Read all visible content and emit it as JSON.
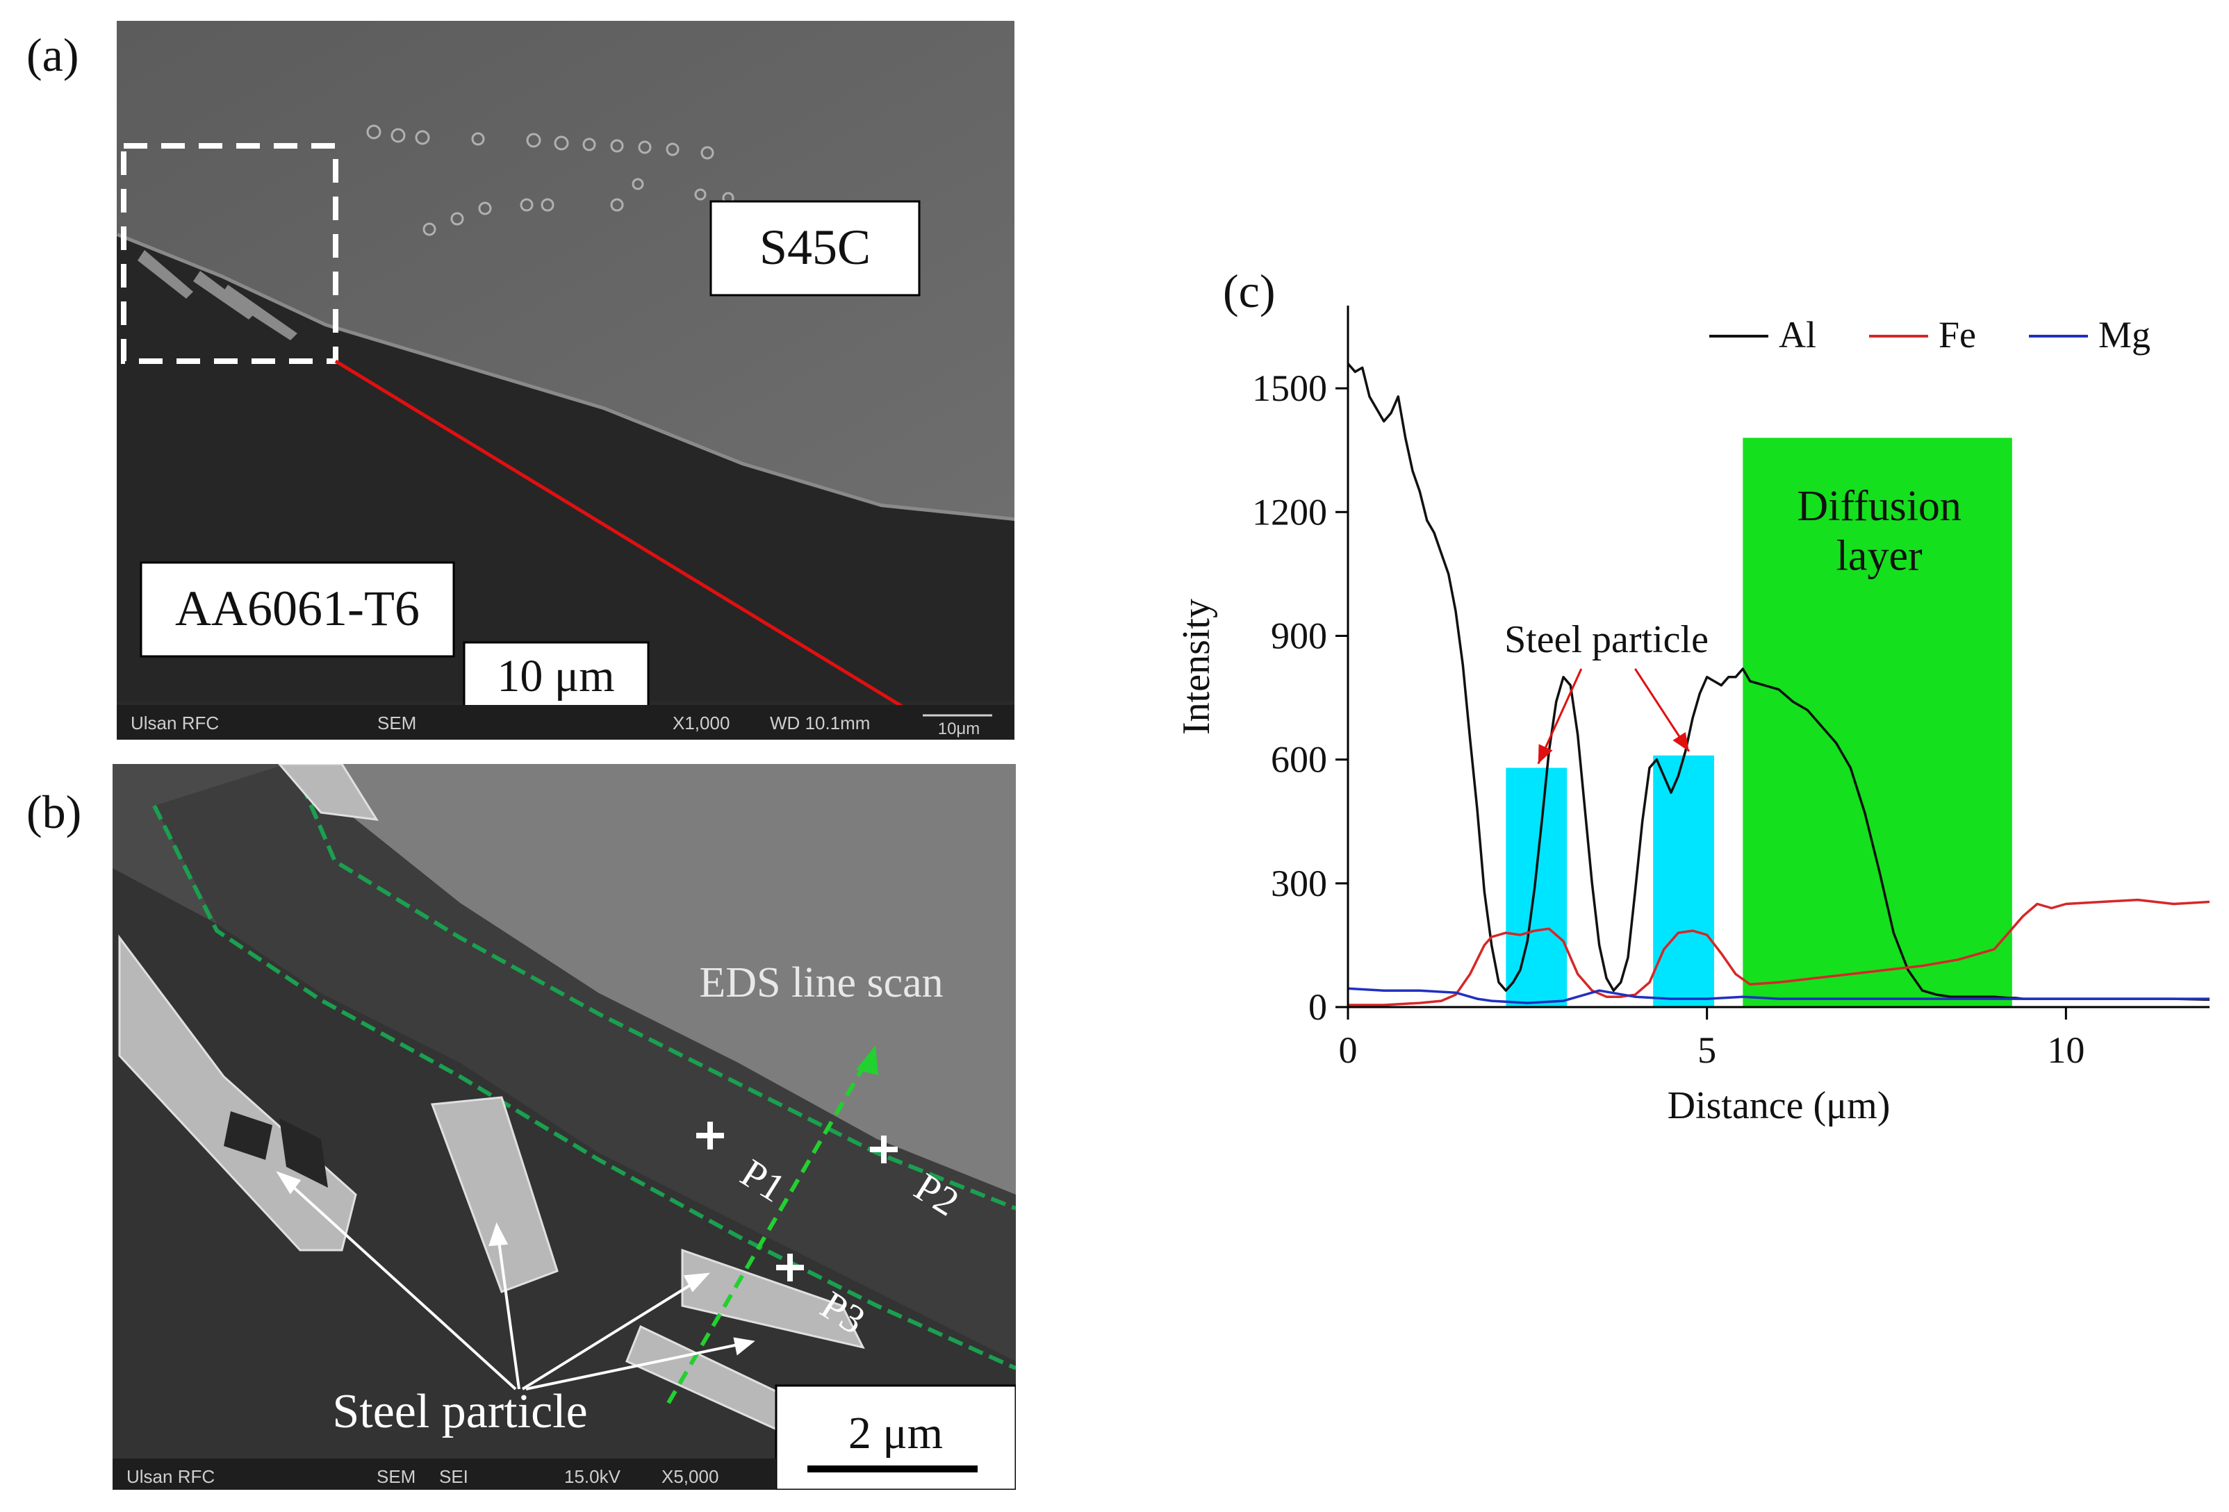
{
  "panels": {
    "a": {
      "letter": "(a)",
      "label_top": "S45C",
      "label_bottom": "AA6061-T6",
      "scale_bar": "10 μm",
      "info_bar": [
        "Ulsan RFC",
        "SEM",
        "X1,000",
        "WD 10.1mm",
        "10μm"
      ]
    },
    "b": {
      "letter": "(b)",
      "eds_label": "EDS line scan",
      "points": [
        "P1",
        "P2",
        "P3"
      ],
      "particle_label": "Steel particle",
      "scale_bar": "2 μm",
      "info_bar": [
        "Ulsan RFC",
        "SEM",
        "SEI",
        "15.0kV",
        "X5,000"
      ]
    },
    "c": {
      "letter": "(c)",
      "annotation_particle": "Steel particle",
      "annotation_diffusion": [
        "Diffusion",
        "layer"
      ]
    }
  },
  "colors": {
    "al": "#111111",
    "fe": "#d62728",
    "mg": "#2030c0",
    "particle_box": "#00e5ff",
    "diffusion_box": "#14e01e",
    "arrow_red": "#e01010",
    "dashed_green": "#1aa050"
  },
  "chart_data": {
    "type": "line",
    "title": "",
    "xlabel": "Distance (μm)",
    "ylabel": "Intensity",
    "xlim": [
      0,
      12
    ],
    "ylim": [
      0,
      1650
    ],
    "xticks": [
      0,
      5,
      10
    ],
    "yticks": [
      0,
      300,
      600,
      900,
      1200,
      1500
    ],
    "legend_position": "top-right",
    "grid": false,
    "series": [
      {
        "name": "Al",
        "x": [
          0,
          0.1,
          0.2,
          0.3,
          0.4,
          0.5,
          0.6,
          0.7,
          0.8,
          0.9,
          1.0,
          1.1,
          1.2,
          1.3,
          1.4,
          1.5,
          1.6,
          1.7,
          1.8,
          1.9,
          2.0,
          2.1,
          2.2,
          2.3,
          2.4,
          2.5,
          2.6,
          2.7,
          2.8,
          2.9,
          3.0,
          3.1,
          3.2,
          3.3,
          3.4,
          3.5,
          3.6,
          3.7,
          3.8,
          3.9,
          4.0,
          4.1,
          4.2,
          4.3,
          4.4,
          4.5,
          4.6,
          4.7,
          4.8,
          4.9,
          5.0,
          5.1,
          5.2,
          5.3,
          5.4,
          5.5,
          5.6,
          5.8,
          6.0,
          6.2,
          6.4,
          6.6,
          6.8,
          7.0,
          7.2,
          7.4,
          7.6,
          7.8,
          8.0,
          8.2,
          8.4,
          8.6,
          8.8,
          9.0,
          9.2,
          9.3,
          9.4,
          9.5,
          9.6,
          9.8,
          10.0,
          10.5,
          11.0,
          11.5,
          12.0
        ],
        "y": [
          1560,
          1540,
          1550,
          1480,
          1450,
          1420,
          1440,
          1480,
          1380,
          1300,
          1250,
          1180,
          1150,
          1100,
          1050,
          960,
          830,
          650,
          480,
          280,
          150,
          60,
          40,
          60,
          90,
          160,
          290,
          450,
          620,
          740,
          800,
          780,
          660,
          480,
          300,
          150,
          70,
          40,
          60,
          120,
          280,
          450,
          580,
          600,
          560,
          520,
          560,
          620,
          700,
          760,
          800,
          790,
          780,
          800,
          800,
          820,
          790,
          780,
          770,
          740,
          720,
          680,
          640,
          580,
          470,
          330,
          180,
          90,
          40,
          30,
          25,
          25,
          25,
          25,
          22,
          22,
          20,
          20,
          20,
          20,
          20,
          20,
          20,
          20,
          18
        ],
        "color": "#111111"
      },
      {
        "name": "Fe",
        "x": [
          0,
          0.5,
          1.0,
          1.3,
          1.5,
          1.7,
          1.9,
          2.0,
          2.2,
          2.4,
          2.6,
          2.8,
          3.0,
          3.2,
          3.4,
          3.6,
          3.8,
          4.0,
          4.2,
          4.4,
          4.6,
          4.8,
          5.0,
          5.2,
          5.4,
          5.6,
          6.0,
          6.5,
          7.0,
          7.5,
          8.0,
          8.5,
          9.0,
          9.2,
          9.4,
          9.6,
          9.8,
          10.0,
          10.5,
          11.0,
          11.5,
          12.0
        ],
        "y": [
          5,
          5,
          10,
          15,
          30,
          80,
          150,
          170,
          180,
          175,
          185,
          190,
          160,
          80,
          40,
          25,
          25,
          30,
          60,
          140,
          180,
          185,
          175,
          130,
          80,
          55,
          60,
          70,
          80,
          90,
          100,
          115,
          140,
          180,
          220,
          250,
          240,
          250,
          255,
          260,
          250,
          255
        ],
        "color": "#d62728"
      },
      {
        "name": "Mg",
        "x": [
          0,
          0.5,
          1.0,
          1.5,
          1.8,
          2.0,
          2.5,
          3.0,
          3.5,
          4.0,
          4.5,
          5.0,
          5.5,
          6.0,
          7.0,
          8.0,
          9.0,
          10.0,
          11.0,
          12.0
        ],
        "y": [
          45,
          40,
          40,
          35,
          20,
          15,
          10,
          15,
          40,
          25,
          20,
          20,
          25,
          20,
          20,
          20,
          20,
          20,
          20,
          20
        ],
        "color": "#2030c0"
      }
    ],
    "highlight_regions": [
      {
        "type": "steel_particle",
        "x0": 2.2,
        "x1": 3.05,
        "y0": 0,
        "y1": 580,
        "color": "#00e5ff"
      },
      {
        "type": "steel_particle",
        "x0": 4.25,
        "x1": 5.1,
        "y0": 0,
        "y1": 610,
        "color": "#00e5ff"
      },
      {
        "type": "diffusion_layer",
        "x0": 5.5,
        "x1": 9.25,
        "y0": 0,
        "y1": 1380,
        "color": "#14e01e"
      }
    ]
  }
}
